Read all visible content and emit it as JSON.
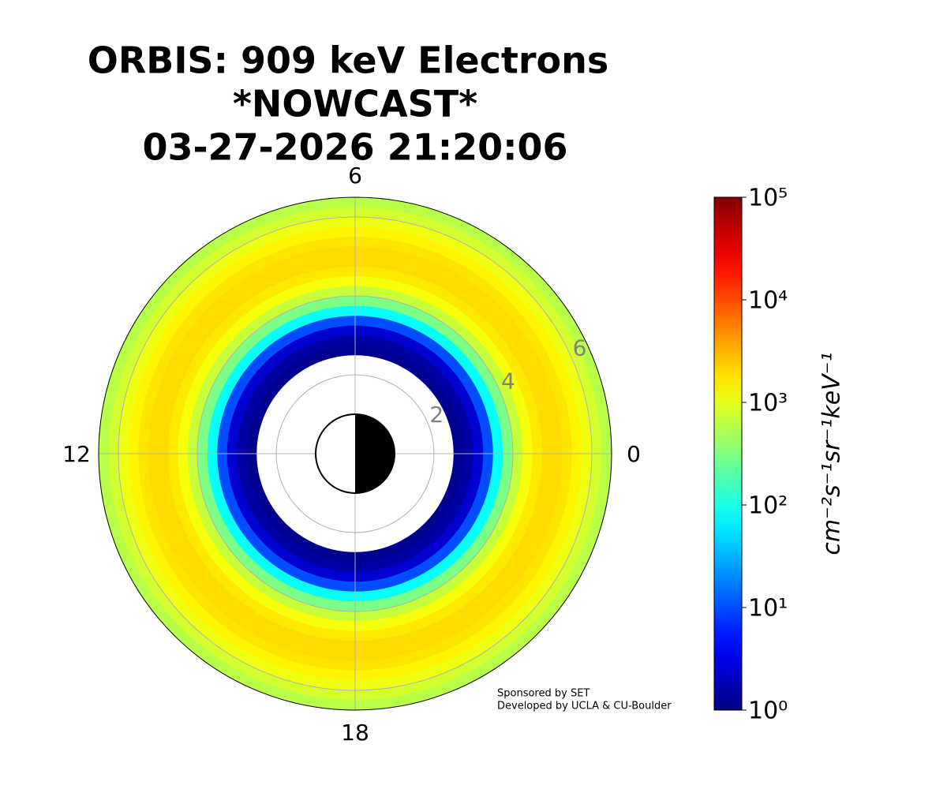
{
  "chart_data": {
    "type": "polar-heatmap",
    "title": [
      "ORBIS: 909 keV Electrons",
      "*NOWCAST*",
      "03-27-2026 21:20:06"
    ],
    "r_edges": [
      2.5,
      2.75,
      3.0,
      3.25,
      3.5,
      3.75,
      4.0,
      4.25,
      4.5,
      4.75,
      5.0,
      5.25,
      5.5,
      5.75,
      6.0,
      6.25,
      6.5
    ],
    "values": [
      1.2,
      1.5,
      2.5,
      10,
      80,
      300,
      700,
      1200,
      1700,
      2000,
      2000,
      1800,
      1500,
      1100,
      800,
      600
    ],
    "rlim": [
      0,
      6.5
    ],
    "rticks": [
      2,
      4,
      6
    ],
    "theta_ticks": [
      0,
      6,
      12,
      18
    ],
    "colormap": "jet",
    "log_color": true,
    "clim": [
      1,
      100000
    ],
    "cticks": [
      {
        "value": 1,
        "label": "10⁰"
      },
      {
        "value": 10,
        "label": "10¹"
      },
      {
        "value": 100,
        "label": "10²"
      },
      {
        "value": 1000,
        "label": "10³"
      },
      {
        "value": 10000,
        "label": "10⁴"
      },
      {
        "value": 100000,
        "label": "10⁵"
      }
    ],
    "colorbar_label": "cm⁻²s⁻¹sr⁻¹keV⁻¹",
    "grid": true,
    "footer": [
      "Sponsored by SET",
      "Developed by UCLA & CU-Boulder"
    ]
  }
}
